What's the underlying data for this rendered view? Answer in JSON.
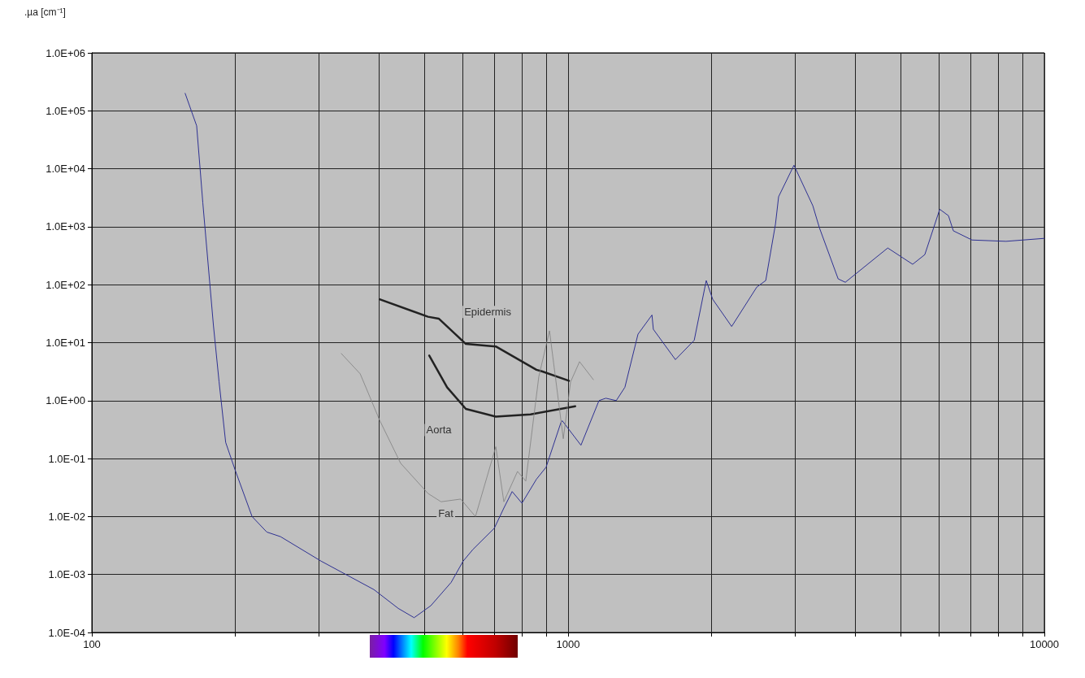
{
  "chart_data": {
    "type": "line",
    "ylabel": ".µa [cm⁻¹]",
    "log": "xy",
    "grid": true,
    "marker": "none",
    "line_style": "solid",
    "xlim": [
      100,
      10000
    ],
    "ylim": [
      0.0001,
      1000000
    ],
    "xticks": [
      100,
      {
        "value": 200,
        "label": null
      },
      {
        "value": 300,
        "label": null
      },
      {
        "value": 400,
        "label": null
      },
      {
        "value": 500,
        "label": null
      },
      {
        "value": 600,
        "label": null
      },
      {
        "value": 700,
        "label": null
      },
      {
        "value": 800,
        "label": null
      },
      {
        "value": 900,
        "label": null
      },
      1000,
      {
        "value": 2000,
        "label": null
      },
      {
        "value": 3000,
        "label": null
      },
      {
        "value": 4000,
        "label": null
      },
      {
        "value": 5000,
        "label": null
      },
      {
        "value": 6000,
        "label": null
      },
      {
        "value": 7000,
        "label": null
      },
      {
        "value": 8000,
        "label": null
      },
      {
        "value": 9000,
        "label": null
      },
      10000
    ],
    "yticks": [
      {
        "value": 0.0001,
        "label": "1.0E-04"
      },
      {
        "value": 0.001,
        "label": "1.0E-03"
      },
      {
        "value": 0.01,
        "label": "1.0E-02"
      },
      {
        "value": 0.1,
        "label": "1.0E-01"
      },
      {
        "value": 1,
        "label": "1.0E+00"
      },
      {
        "value": 10,
        "label": "1.0E+01"
      },
      {
        "value": 100,
        "label": "1.0E+02"
      },
      {
        "value": 1000,
        "label": "1.0E+03"
      },
      {
        "value": 10000,
        "label": "1.0E+04"
      },
      {
        "value": 100000,
        "label": "1.0E+05"
      },
      {
        "value": 1000000,
        "label": "1.0E+06"
      }
    ],
    "series": [
      {
        "color": "#2e3192",
        "x": [
          157,
          166,
          171,
          180,
          185,
          191,
          200,
          217,
          233,
          249,
          303,
          391,
          440,
          475,
          515,
          568,
          602,
          631,
          700,
          733,
          763,
          800,
          858,
          899,
          966,
          972,
          1064,
          1161,
          1200,
          1262,
          1316,
          1402,
          1500,
          1510,
          1680,
          1840,
          1950,
          2012,
          2205,
          2490,
          2600,
          2725,
          2767,
          2980,
          3265,
          3370,
          3690,
          3820,
          4690,
          5290,
          5610,
          6030,
          6290,
          6440,
          7050,
          8310,
          10000
        ],
        "values": [
          200000,
          55000,
          2600,
          20,
          2.1,
          0.19,
          0.063,
          0.01,
          0.0054,
          0.0045,
          0.0017,
          0.00055,
          0.00026,
          0.00018,
          0.00029,
          0.00073,
          0.0017,
          0.0027,
          0.0063,
          0.014,
          0.027,
          0.017,
          0.044,
          0.071,
          0.42,
          0.45,
          0.17,
          1.0,
          1.1,
          1.0,
          1.7,
          14,
          30,
          17,
          5.1,
          11,
          118,
          56,
          19,
          91,
          118,
          1100,
          3300,
          11500,
          2300,
          960,
          126,
          110,
          430,
          225,
          330,
          2000,
          1550,
          850,
          590,
          560,
          630
        ]
      },
      {
        "name": "Epidermis",
        "color": "#222222",
        "x": [
          402,
          508,
          535,
          610,
          705,
          858,
          881,
          1004
        ],
        "values": [
          56,
          28,
          26,
          9.5,
          8.6,
          3.4,
          3.2,
          2.2
        ]
      },
      {
        "name": "Aorta",
        "color": "#222222",
        "x": [
          511,
          557,
          610,
          705,
          834,
          1035
        ],
        "values": [
          6.0,
          1.7,
          0.72,
          0.53,
          0.58,
          0.8
        ]
      },
      {
        "name": "Fat",
        "color": "#808080",
        "x": [
          334,
          366,
          402,
          445,
          508,
          541,
          595,
          639,
          705,
          733,
          783,
          815,
          868,
          914,
          977,
          1012,
          1057,
          1130
        ],
        "values": [
          6.5,
          2.9,
          0.46,
          0.083,
          0.025,
          0.018,
          0.02,
          0.01,
          0.16,
          0.018,
          0.06,
          0.041,
          2.6,
          16,
          0.22,
          2.1,
          4.7,
          2.3
        ]
      }
    ]
  }
}
